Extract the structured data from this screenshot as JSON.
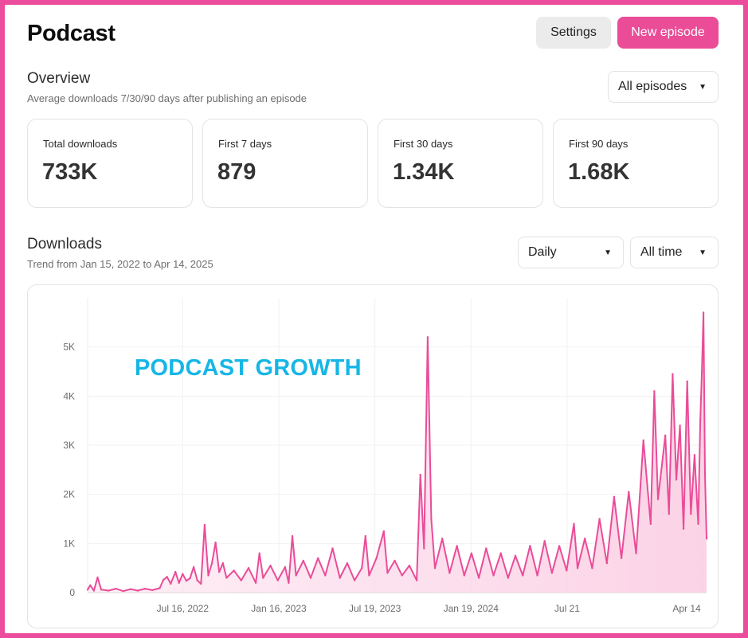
{
  "header": {
    "title": "Podcast",
    "settings_label": "Settings",
    "new_episode_label": "New episode"
  },
  "overview": {
    "title": "Overview",
    "subtitle": "Average downloads 7/30/90 days after publishing an episode",
    "filter": {
      "selected": "All episodes",
      "icon": "caret-down-icon"
    },
    "cards": [
      {
        "label": "Total downloads",
        "value": "733K"
      },
      {
        "label": "First 7 days",
        "value": "879"
      },
      {
        "label": "First 30 days",
        "value": "1.34K"
      },
      {
        "label": "First 90 days",
        "value": "1.68K"
      }
    ]
  },
  "downloads": {
    "title": "Downloads",
    "subtitle": "Trend from Jan 15, 2022 to Apr 14, 2025",
    "interval_select": {
      "selected": "Daily",
      "icon": "caret-down-icon"
    },
    "range_select": {
      "selected": "All time",
      "icon": "caret-down-icon"
    }
  },
  "colors": {
    "accent": "#ea4c98",
    "frame": "#ec4c9c",
    "overlay_text": "#16b6e6",
    "area_fill": "#fbd3e6"
  },
  "chart_data": {
    "type": "area",
    "overlay_text": "PODCAST GROWTH",
    "x_range": [
      "2022-01-15",
      "2025-04-14"
    ],
    "ylim": [
      0,
      6000
    ],
    "y_ticks": [
      {
        "label": "0",
        "value": 0
      },
      {
        "label": "1K",
        "value": 1000
      },
      {
        "label": "2K",
        "value": 2000
      },
      {
        "label": "3K",
        "value": 3000
      },
      {
        "label": "4K",
        "value": 4000
      },
      {
        "label": "5K",
        "value": 5000
      }
    ],
    "x_ticks": [
      {
        "label": "Jul 16, 2022",
        "date": "2022-07-16"
      },
      {
        "label": "Jan 16, 2023",
        "date": "2023-01-16"
      },
      {
        "label": "Jul 19, 2023",
        "date": "2023-07-19"
      },
      {
        "label": "Jan 19, 2024",
        "date": "2024-01-19"
      },
      {
        "label": "Jul 21",
        "date": "2024-07-21"
      },
      {
        "label": "Apr 14",
        "date": "2025-04-14"
      }
    ],
    "grid": true,
    "series": [
      {
        "values": [
          {
            "x": "2022-01-15",
            "y": 60
          },
          {
            "x": "2022-01-20",
            "y": 150
          },
          {
            "x": "2022-01-27",
            "y": 40
          },
          {
            "x": "2022-02-03",
            "y": 310
          },
          {
            "x": "2022-02-10",
            "y": 60
          },
          {
            "x": "2022-02-24",
            "y": 40
          },
          {
            "x": "2022-03-10",
            "y": 80
          },
          {
            "x": "2022-03-24",
            "y": 30
          },
          {
            "x": "2022-04-07",
            "y": 70
          },
          {
            "x": "2022-04-21",
            "y": 40
          },
          {
            "x": "2022-05-05",
            "y": 80
          },
          {
            "x": "2022-05-19",
            "y": 50
          },
          {
            "x": "2022-06-02",
            "y": 90
          },
          {
            "x": "2022-06-09",
            "y": 260
          },
          {
            "x": "2022-06-16",
            "y": 320
          },
          {
            "x": "2022-06-23",
            "y": 180
          },
          {
            "x": "2022-07-02",
            "y": 420
          },
          {
            "x": "2022-07-09",
            "y": 200
          },
          {
            "x": "2022-07-16",
            "y": 380
          },
          {
            "x": "2022-07-23",
            "y": 240
          },
          {
            "x": "2022-07-30",
            "y": 290
          },
          {
            "x": "2022-08-06",
            "y": 520
          },
          {
            "x": "2022-08-13",
            "y": 250
          },
          {
            "x": "2022-08-20",
            "y": 180
          },
          {
            "x": "2022-08-27",
            "y": 1380
          },
          {
            "x": "2022-09-03",
            "y": 350
          },
          {
            "x": "2022-09-10",
            "y": 600
          },
          {
            "x": "2022-09-17",
            "y": 1020
          },
          {
            "x": "2022-09-24",
            "y": 420
          },
          {
            "x": "2022-10-01",
            "y": 600
          },
          {
            "x": "2022-10-08",
            "y": 300
          },
          {
            "x": "2022-10-22",
            "y": 450
          },
          {
            "x": "2022-11-05",
            "y": 250
          },
          {
            "x": "2022-11-19",
            "y": 500
          },
          {
            "x": "2022-12-03",
            "y": 200
          },
          {
            "x": "2022-12-10",
            "y": 800
          },
          {
            "x": "2022-12-17",
            "y": 300
          },
          {
            "x": "2022-12-31",
            "y": 550
          },
          {
            "x": "2023-01-14",
            "y": 250
          },
          {
            "x": "2023-01-28",
            "y": 520
          },
          {
            "x": "2023-02-04",
            "y": 200
          },
          {
            "x": "2023-02-11",
            "y": 1150
          },
          {
            "x": "2023-02-18",
            "y": 350
          },
          {
            "x": "2023-03-04",
            "y": 650
          },
          {
            "x": "2023-03-18",
            "y": 300
          },
          {
            "x": "2023-04-01",
            "y": 700
          },
          {
            "x": "2023-04-15",
            "y": 350
          },
          {
            "x": "2023-04-29",
            "y": 900
          },
          {
            "x": "2023-05-13",
            "y": 300
          },
          {
            "x": "2023-05-27",
            "y": 600
          },
          {
            "x": "2023-06-10",
            "y": 250
          },
          {
            "x": "2023-06-24",
            "y": 500
          },
          {
            "x": "2023-07-01",
            "y": 1150
          },
          {
            "x": "2023-07-08",
            "y": 350
          },
          {
            "x": "2023-07-22",
            "y": 700
          },
          {
            "x": "2023-08-05",
            "y": 1250
          },
          {
            "x": "2023-08-12",
            "y": 400
          },
          {
            "x": "2023-08-26",
            "y": 650
          },
          {
            "x": "2023-09-09",
            "y": 350
          },
          {
            "x": "2023-09-23",
            "y": 550
          },
          {
            "x": "2023-10-07",
            "y": 250
          },
          {
            "x": "2023-10-14",
            "y": 2400
          },
          {
            "x": "2023-10-21",
            "y": 900
          },
          {
            "x": "2023-10-28",
            "y": 5200
          },
          {
            "x": "2023-11-04",
            "y": 1500
          },
          {
            "x": "2023-11-11",
            "y": 500
          },
          {
            "x": "2023-11-25",
            "y": 1100
          },
          {
            "x": "2023-12-09",
            "y": 400
          },
          {
            "x": "2023-12-23",
            "y": 950
          },
          {
            "x": "2024-01-06",
            "y": 350
          },
          {
            "x": "2024-01-20",
            "y": 800
          },
          {
            "x": "2024-02-03",
            "y": 300
          },
          {
            "x": "2024-02-17",
            "y": 900
          },
          {
            "x": "2024-03-02",
            "y": 350
          },
          {
            "x": "2024-03-16",
            "y": 800
          },
          {
            "x": "2024-03-30",
            "y": 300
          },
          {
            "x": "2024-04-13",
            "y": 750
          },
          {
            "x": "2024-04-27",
            "y": 350
          },
          {
            "x": "2024-05-11",
            "y": 950
          },
          {
            "x": "2024-05-25",
            "y": 350
          },
          {
            "x": "2024-06-08",
            "y": 1050
          },
          {
            "x": "2024-06-22",
            "y": 400
          },
          {
            "x": "2024-07-06",
            "y": 950
          },
          {
            "x": "2024-07-20",
            "y": 450
          },
          {
            "x": "2024-08-03",
            "y": 1400
          },
          {
            "x": "2024-08-10",
            "y": 500
          },
          {
            "x": "2024-08-24",
            "y": 1100
          },
          {
            "x": "2024-09-07",
            "y": 500
          },
          {
            "x": "2024-09-21",
            "y": 1500
          },
          {
            "x": "2024-10-05",
            "y": 600
          },
          {
            "x": "2024-10-19",
            "y": 1950
          },
          {
            "x": "2024-11-02",
            "y": 700
          },
          {
            "x": "2024-11-16",
            "y": 2050
          },
          {
            "x": "2024-11-30",
            "y": 800
          },
          {
            "x": "2024-12-14",
            "y": 3100
          },
          {
            "x": "2024-12-28",
            "y": 1400
          },
          {
            "x": "2025-01-04",
            "y": 4100
          },
          {
            "x": "2025-01-11",
            "y": 1900
          },
          {
            "x": "2025-01-25",
            "y": 3200
          },
          {
            "x": "2025-02-01",
            "y": 1600
          },
          {
            "x": "2025-02-08",
            "y": 4450
          },
          {
            "x": "2025-02-15",
            "y": 2300
          },
          {
            "x": "2025-02-22",
            "y": 3400
          },
          {
            "x": "2025-03-01",
            "y": 1300
          },
          {
            "x": "2025-03-08",
            "y": 4300
          },
          {
            "x": "2025-03-15",
            "y": 1600
          },
          {
            "x": "2025-03-22",
            "y": 2800
          },
          {
            "x": "2025-03-29",
            "y": 1400
          },
          {
            "x": "2025-04-02",
            "y": 3500
          },
          {
            "x": "2025-04-05",
            "y": 4500
          },
          {
            "x": "2025-04-08",
            "y": 5700
          },
          {
            "x": "2025-04-11",
            "y": 2400
          },
          {
            "x": "2025-04-14",
            "y": 1100
          }
        ]
      }
    ]
  }
}
